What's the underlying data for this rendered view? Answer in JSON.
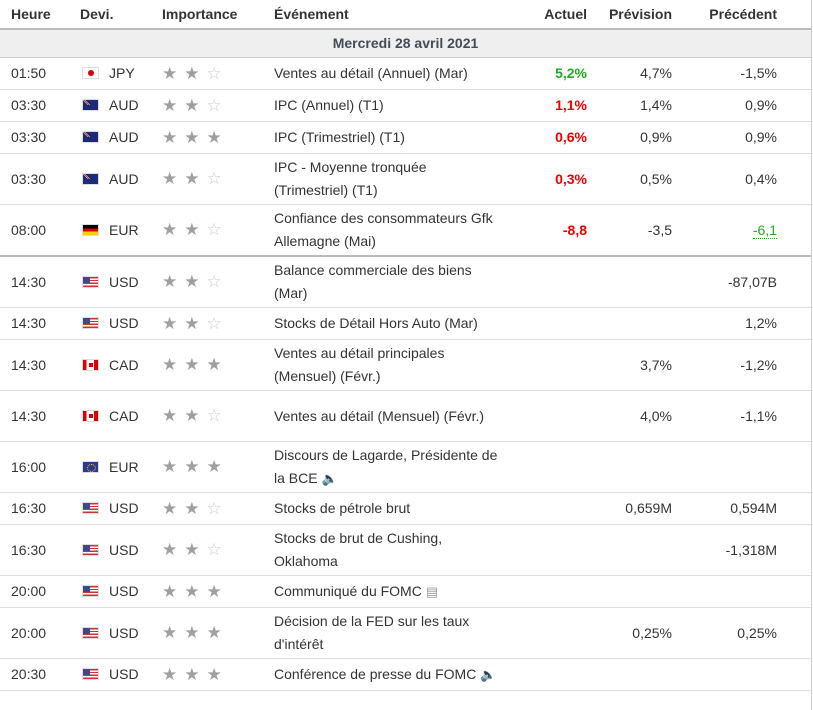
{
  "headers": {
    "time": "Heure",
    "currency": "Devi.",
    "importance": "Importance",
    "event": "Événement",
    "actual": "Actuel",
    "forecast": "Prévision",
    "previous": "Précédent"
  },
  "date_label": "Mercredi 28 avril 2021",
  "colors": {
    "positive": "#22aa22",
    "negative": "#ee0000"
  },
  "rows": [
    {
      "time": "01:50",
      "cur": "JPY",
      "flag": "jp",
      "stars": 2,
      "event": "Ventes au détail (Annuel) (Mar)",
      "actual": "5,2%",
      "actual_tone": "green",
      "forecast": "4,7%",
      "previous": "-1,5%"
    },
    {
      "time": "03:30",
      "cur": "AUD",
      "flag": "au",
      "stars": 2,
      "event": "IPC (Annuel) (T1)",
      "actual": "1,1%",
      "actual_tone": "red",
      "forecast": "1,4%",
      "previous": "0,9%"
    },
    {
      "time": "03:30",
      "cur": "AUD",
      "flag": "au",
      "stars": 3,
      "event": "IPC (Trimestriel) (T1)",
      "actual": "0,6%",
      "actual_tone": "red",
      "forecast": "0,9%",
      "previous": "0,9%"
    },
    {
      "time": "03:30",
      "cur": "AUD",
      "flag": "au",
      "stars": 2,
      "event": "IPC - Moyenne tronquée (Trimestriel) (T1)",
      "actual": "0,3%",
      "actual_tone": "red",
      "forecast": "0,5%",
      "previous": "0,4%"
    },
    {
      "time": "08:00",
      "cur": "EUR",
      "flag": "de",
      "stars": 2,
      "event": "Confiance des consommateurs Gfk Allemagne (Mai)",
      "actual": "-8,8",
      "actual_tone": "red",
      "forecast": "-3,5",
      "previous": "-6,1",
      "previous_tone": "green"
    },
    {
      "time": "14:30",
      "cur": "USD",
      "flag": "us",
      "stars": 2,
      "event": "Balance commerciale des biens (Mar)",
      "actual": "",
      "forecast": "",
      "previous": "-87,07B"
    },
    {
      "time": "14:30",
      "cur": "USD",
      "flag": "us",
      "stars": 2,
      "event": "Stocks de Détail Hors Auto (Mar)",
      "actual": "",
      "forecast": "",
      "previous": "1,2%"
    },
    {
      "time": "14:30",
      "cur": "CAD",
      "flag": "ca",
      "stars": 3,
      "event": "Ventes au détail principales (Mensuel) (Févr.)",
      "actual": "",
      "forecast": "3,7%",
      "previous": "-1,2%"
    },
    {
      "time": "14:30",
      "cur": "CAD",
      "flag": "ca",
      "stars": 2,
      "event": "Ventes au détail (Mensuel) (Févr.)",
      "actual": "",
      "forecast": "4,0%",
      "previous": "-1,1%"
    },
    {
      "time": "16:00",
      "cur": "EUR",
      "flag": "eu",
      "stars": 3,
      "event": "Discours de Lagarde, Présidente de la BCE",
      "icon": "speaker-icon",
      "actual": "",
      "forecast": "",
      "previous": ""
    },
    {
      "time": "16:30",
      "cur": "USD",
      "flag": "us",
      "stars": 2,
      "event": "Stocks de pétrole brut",
      "actual": "",
      "forecast": "0,659M",
      "previous": "0,594M"
    },
    {
      "time": "16:30",
      "cur": "USD",
      "flag": "us",
      "stars": 2,
      "event": "Stocks de brut de Cushing, Oklahoma",
      "actual": "",
      "forecast": "",
      "previous": "-1,318M"
    },
    {
      "time": "20:00",
      "cur": "USD",
      "flag": "us",
      "stars": 3,
      "event": "Communiqué du FOMC",
      "icon": "document-icon",
      "actual": "",
      "forecast": "",
      "previous": ""
    },
    {
      "time": "20:00",
      "cur": "USD",
      "flag": "us",
      "stars": 3,
      "event": "Décision de la FED sur les taux d'intérêt",
      "actual": "",
      "forecast": "0,25%",
      "previous": "0,25%"
    },
    {
      "time": "20:30",
      "cur": "USD",
      "flag": "us",
      "stars": 3,
      "event": "Conférence de presse du FOMC",
      "icon": "speaker-icon",
      "actual": "",
      "forecast": "",
      "previous": ""
    }
  ]
}
